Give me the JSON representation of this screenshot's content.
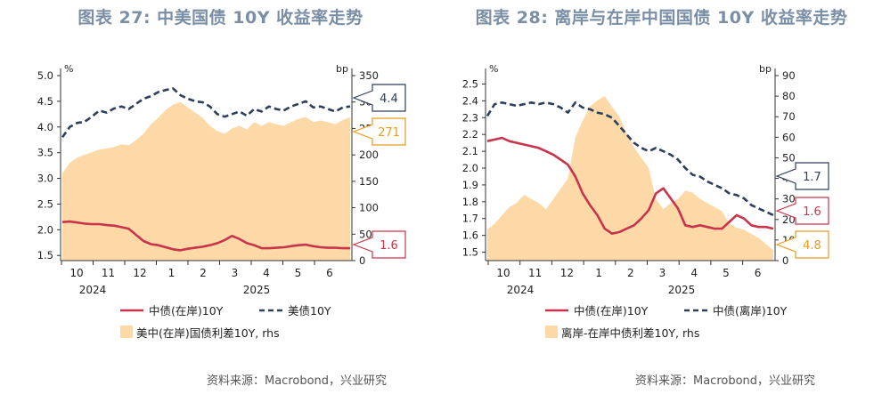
{
  "charts": [
    {
      "title": "图表 27: 中美国债 10Y 收益率走势",
      "source": "资料来源：Macrobond，兴业研究",
      "left_unit": "%",
      "right_unit": "bp",
      "callouts": [
        "4.4",
        "271",
        "1.6"
      ]
    },
    {
      "title": "图表 28: 离岸与在岸中国国债 10Y 收益率走势",
      "source": "资料来源：Macrobond，兴业研究",
      "left_unit": "%",
      "right_unit": "bp",
      "callouts": [
        "1.7",
        "1.6",
        "4.8"
      ]
    }
  ],
  "chart_data": [
    {
      "type": "line",
      "x_tick_labels": [
        "10",
        "11",
        "12",
        "1",
        "2",
        "3",
        "4",
        "5",
        "6"
      ],
      "year_labels": [
        "2024",
        "2025"
      ],
      "left_axis": {
        "ylim": [
          1.4,
          5.0
        ],
        "ticks": [
          "1.5",
          "2.0",
          "2.5",
          "3.0",
          "3.5",
          "4.0",
          "4.5",
          "5.0"
        ]
      },
      "right_axis": {
        "ylim": [
          0,
          350
        ],
        "ticks": [
          "0",
          "50",
          "100",
          "150",
          "200",
          "250",
          "300",
          "350"
        ]
      },
      "series": [
        {
          "name": "中债(在岸)10Y",
          "axis": "left",
          "kind": "line",
          "color": "#c9344a",
          "values": [
            2.15,
            2.16,
            2.14,
            2.12,
            2.11,
            2.11,
            2.09,
            2.08,
            2.05,
            2.02,
            1.9,
            1.78,
            1.72,
            1.7,
            1.66,
            1.62,
            1.6,
            1.63,
            1.65,
            1.67,
            1.7,
            1.74,
            1.8,
            1.88,
            1.82,
            1.74,
            1.7,
            1.64,
            1.64,
            1.65,
            1.66,
            1.68,
            1.7,
            1.71,
            1.68,
            1.66,
            1.65,
            1.65,
            1.64,
            1.64
          ]
        },
        {
          "name": "美债10Y",
          "axis": "left",
          "kind": "dashed",
          "color": "#2e3f5c",
          "values": [
            3.8,
            4.0,
            4.08,
            4.1,
            4.2,
            4.32,
            4.28,
            4.36,
            4.4,
            4.35,
            4.45,
            4.55,
            4.6,
            4.68,
            4.72,
            4.75,
            4.62,
            4.55,
            4.5,
            4.48,
            4.4,
            4.25,
            4.2,
            4.25,
            4.3,
            4.22,
            4.35,
            4.3,
            4.4,
            4.35,
            4.32,
            4.4,
            4.45,
            4.5,
            4.38,
            4.4,
            4.35,
            4.3,
            4.38,
            4.4
          ]
        },
        {
          "name": "美中(在岸)国债利差10Y, rhs",
          "axis": "right",
          "kind": "area",
          "color": "#fcd9a7",
          "values": [
            165,
            185,
            195,
            200,
            205,
            210,
            212,
            215,
            220,
            218,
            228,
            240,
            258,
            270,
            285,
            295,
            300,
            290,
            280,
            270,
            255,
            245,
            240,
            250,
            255,
            248,
            262,
            255,
            262,
            258,
            255,
            262,
            268,
            272,
            262,
            265,
            262,
            258,
            266,
            271
          ]
        }
      ]
    },
    {
      "type": "line",
      "x_tick_labels": [
        "10",
        "11",
        "12",
        "1",
        "2",
        "3",
        "4",
        "5",
        "6"
      ],
      "year_labels": [
        "2024",
        "2025"
      ],
      "left_axis": {
        "ylim": [
          1.45,
          2.55
        ],
        "ticks": [
          "1.5",
          "1.6",
          "1.7",
          "1.8",
          "1.9",
          "2.0",
          "2.1",
          "2.2",
          "2.3",
          "2.4",
          "2.5"
        ]
      },
      "right_axis": {
        "ylim": [
          0,
          90
        ],
        "ticks": [
          "0",
          "10",
          "20",
          "30",
          "40",
          "50",
          "60",
          "70",
          "80",
          "90"
        ]
      },
      "series": [
        {
          "name": "中债(在岸)10Y",
          "axis": "left",
          "kind": "line",
          "color": "#c9344a",
          "values": [
            2.16,
            2.17,
            2.18,
            2.16,
            2.15,
            2.14,
            2.13,
            2.12,
            2.1,
            2.08,
            2.05,
            2.02,
            1.95,
            1.85,
            1.78,
            1.72,
            1.64,
            1.61,
            1.62,
            1.64,
            1.66,
            1.7,
            1.75,
            1.85,
            1.88,
            1.82,
            1.76,
            1.66,
            1.65,
            1.66,
            1.65,
            1.64,
            1.64,
            1.68,
            1.72,
            1.7,
            1.66,
            1.65,
            1.65,
            1.64
          ]
        },
        {
          "name": "中债(离岸)10Y",
          "axis": "left",
          "kind": "dashed",
          "color": "#2e3f5c",
          "values": [
            2.31,
            2.38,
            2.39,
            2.38,
            2.37,
            2.38,
            2.39,
            2.38,
            2.39,
            2.38,
            2.36,
            2.33,
            2.39,
            2.36,
            2.35,
            2.33,
            2.32,
            2.3,
            2.25,
            2.2,
            2.15,
            2.12,
            2.1,
            2.12,
            2.1,
            2.08,
            2.05,
            2.0,
            1.96,
            1.95,
            1.92,
            1.9,
            1.88,
            1.85,
            1.84,
            1.82,
            1.78,
            1.76,
            1.74,
            1.72
          ]
        },
        {
          "name": "离岸-在岸中债利差10Y, rhs",
          "axis": "right",
          "kind": "area",
          "color": "#fcd9a7",
          "values": [
            15,
            18,
            22,
            26,
            28,
            32,
            30,
            28,
            25,
            30,
            35,
            40,
            60,
            68,
            75,
            78,
            80,
            75,
            70,
            62,
            55,
            50,
            45,
            30,
            25,
            28,
            30,
            34,
            33,
            30,
            28,
            26,
            24,
            18,
            16,
            15,
            13,
            11,
            8,
            5
          ]
        }
      ]
    }
  ],
  "legends": [
    {
      "items": [
        {
          "label": "中债(在岸)10Y",
          "kind": "line",
          "color": "#c9344a"
        },
        {
          "label": "美债10Y",
          "kind": "dashed",
          "color": "#2e3f5c"
        },
        {
          "label": "美中(在岸)国债利差10Y, rhs",
          "kind": "area",
          "color": "#fcd9a7"
        }
      ]
    },
    {
      "items": [
        {
          "label": "中债(在岸)10Y",
          "kind": "line",
          "color": "#c9344a"
        },
        {
          "label": "中债(离岸)10Y",
          "kind": "dashed",
          "color": "#2e3f5c"
        },
        {
          "label": "离岸-在岸中债利差10Y, rhs",
          "kind": "area",
          "color": "#fcd9a7"
        }
      ]
    }
  ],
  "callout_styles": [
    [
      "#2e3f5c",
      "#e69c1f",
      "#c9344a"
    ],
    [
      "#2e3f5c",
      "#c9344a",
      "#e69c1f"
    ]
  ]
}
